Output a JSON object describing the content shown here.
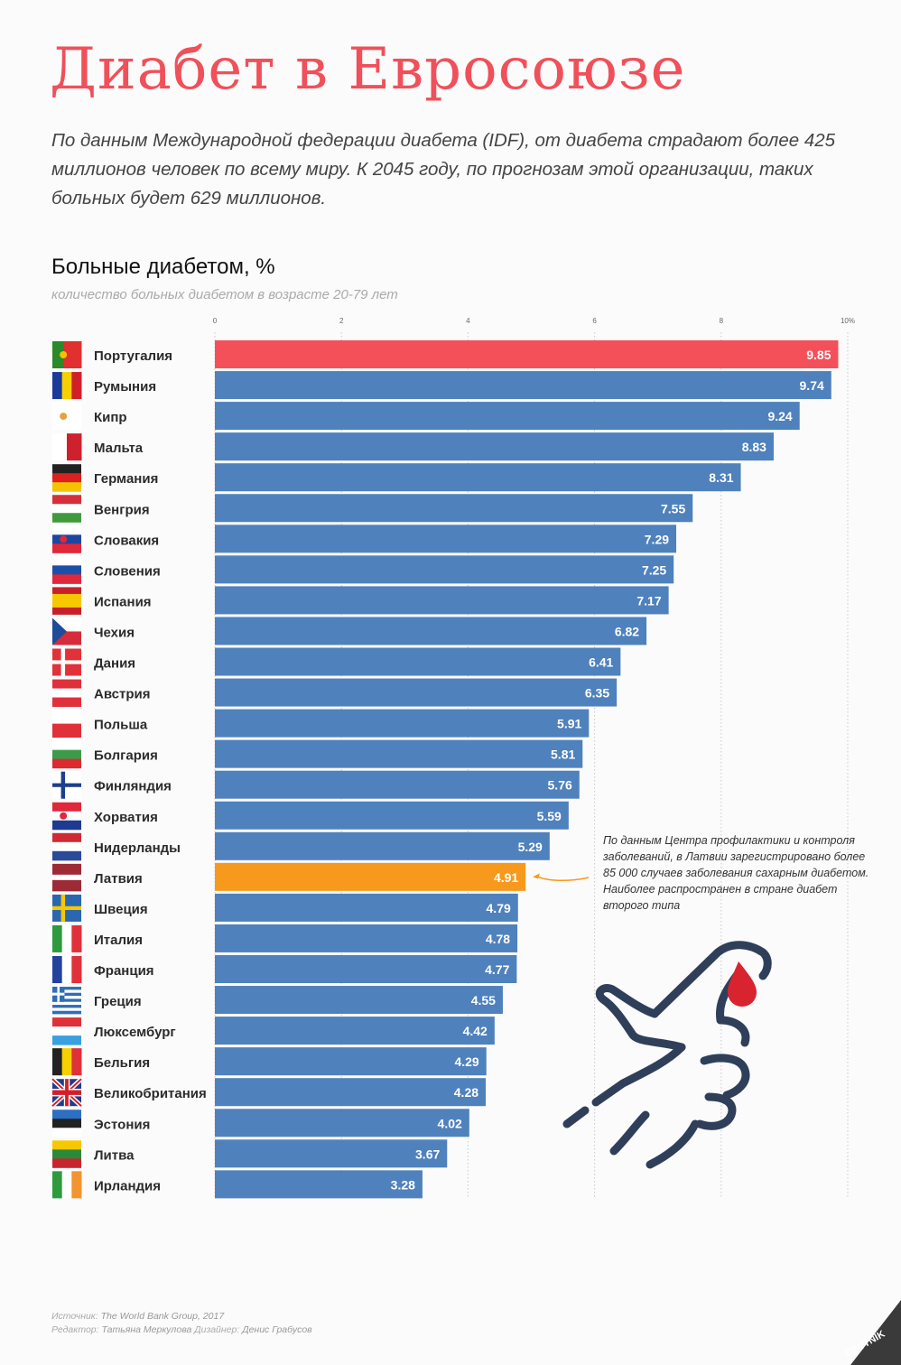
{
  "title": "Диабет в Евросоюзе",
  "intro": "По данным  Международной федерации диабета (IDF), от диабета страдают более 425 миллионов человек по всему миру. К 2045 году, по прогнозам этой организации, таких больных будет 629 миллионов.",
  "chart_data": {
    "type": "bar",
    "orientation": "horizontal",
    "title": "Больные диабетом, %",
    "subtitle": "количество больных диабетом в возрасте 20-79 лет",
    "xlim": [
      0,
      10
    ],
    "ticks": [
      {
        "value": 0,
        "label": "0"
      },
      {
        "value": 2,
        "label": "2"
      },
      {
        "value": 4,
        "label": "4"
      },
      {
        "value": 6,
        "label": "6"
      },
      {
        "value": 8,
        "label": "8"
      },
      {
        "value": 10,
        "label": "10%"
      }
    ],
    "grid": true,
    "categories": [
      "Португалия",
      "Румыния",
      "Кипр",
      "Мальта",
      "Германия",
      "Венгрия",
      "Словакия",
      "Словения",
      "Испания",
      "Чехия",
      "Дания",
      "Австрия",
      "Польша",
      "Болгария",
      "Финляндия",
      "Хорватия",
      "Нидерланды",
      "Латвия",
      "Швеция",
      "Италия",
      "Франция",
      "Греция",
      "Люксембург",
      "Бельгия",
      "Великобритания",
      "Эстония",
      "Литва",
      "Ирландия"
    ],
    "value_labels": [
      "9.85",
      "9.74",
      "9.24",
      "8.83",
      "8.31",
      "7.55",
      "7.29",
      "7.25",
      "7.17",
      "6.82",
      "6.41",
      "6.35",
      "5.91",
      "5.81",
      "5.76",
      "5.59",
      "5.29",
      "4.91",
      "4.79",
      "4.78",
      "4.77",
      "4.55",
      "4.42",
      "4.29",
      "4.28",
      "4.02",
      "3.67",
      "3.28"
    ],
    "values": [
      9.85,
      9.74,
      9.24,
      8.83,
      8.31,
      7.55,
      7.29,
      7.25,
      7.17,
      6.82,
      6.41,
      6.35,
      5.91,
      5.81,
      5.76,
      5.59,
      5.29,
      4.91,
      4.79,
      4.78,
      4.77,
      4.55,
      4.42,
      4.29,
      4.28,
      4.02,
      3.67,
      3.28
    ],
    "highlights": {
      "Португалия": "#f4505a",
      "Латвия": "#f7991c"
    }
  },
  "colors": {
    "bar": "#4f81bd",
    "title": "#f0505a",
    "highlight_top": "#f4505a",
    "highlight_latvia": "#f7991c"
  },
  "note_lines": [
    "По данным Центра профилактики и контроля",
    "заболеваний, в Латвии зарегистрировано более",
    "85 000 случаев заболевания сахарным диабетом.",
    "Наиболее распространен в стране диабет",
    "второго типа"
  ],
  "footer": {
    "source_label": "Источник:",
    "source": "The World Bank Group, 2017",
    "editor_label": "Редактор:",
    "editor": "Татьяна Меркулова",
    "designer_label": "Дизайнер:",
    "designer": "Денис Грабусов"
  },
  "logo_text": "SPUTNIK",
  "icons": [
    "hand-blood-drop-icon",
    "country-flag-icons",
    "sputnik-logo"
  ]
}
